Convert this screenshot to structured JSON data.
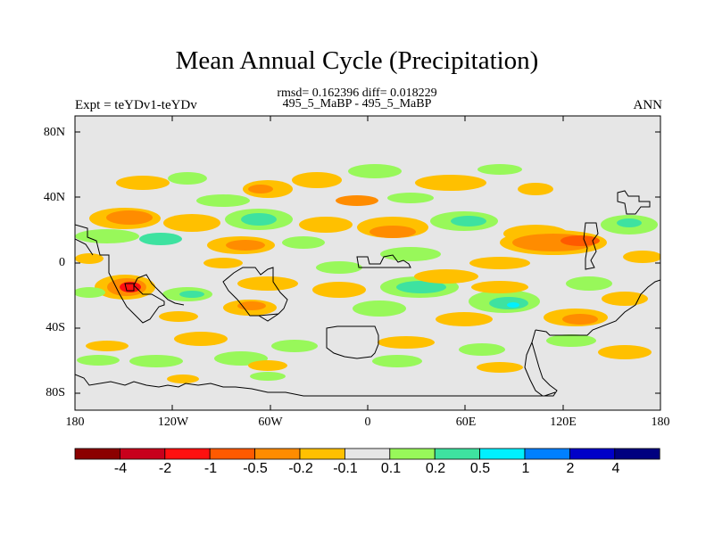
{
  "title": "Mean Annual Cycle (Precipitation)",
  "stats": "rmsd= 0.162396 diff= 0.018229",
  "runs": "495_5_MaBP - 495_5_MaBP",
  "expt": "Expt = teYDv1-teYDv",
  "season": "ANN",
  "lat_labels": [
    "80N",
    "40N",
    "0",
    "40S",
    "80S"
  ],
  "lon_labels": [
    "180",
    "120W",
    "60W",
    "0",
    "60E",
    "120E",
    "180"
  ],
  "colorbar": {
    "labels": [
      "-4",
      "-2",
      "-1",
      "-0.5",
      "-0.2",
      "-0.1",
      "0.1",
      "0.2",
      "0.5",
      "1",
      "2",
      "4"
    ],
    "colors": [
      "#8b0000",
      "#c8001c",
      "#ff1010",
      "#ff5a00",
      "#ff8c00",
      "#ffc000",
      "#e6e6e6",
      "#98f85a",
      "#3ee2a0",
      "#00f0ff",
      "#0080ff",
      "#0000c8",
      "#000080"
    ]
  },
  "colors": {
    "neutral": "#e6e6e6",
    "light_orange": "#ffc000",
    "orange": "#ff8c00",
    "dark_orange": "#ff5a00",
    "red": "#ff1010",
    "green": "#98f85a",
    "teal": "#3ee2a0",
    "cyan": "#00f0ff"
  }
}
